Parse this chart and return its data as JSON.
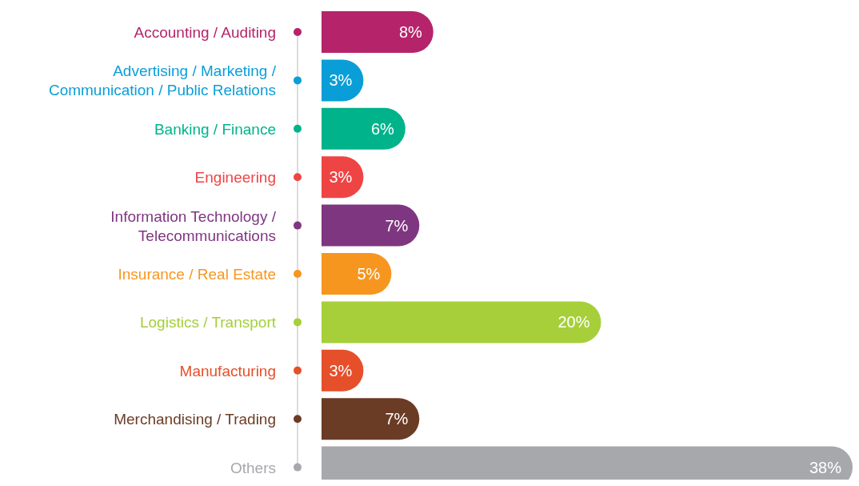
{
  "chart_data": {
    "type": "bar",
    "orientation": "horizontal",
    "categories": [
      "Accounting / Auditing",
      "Advertising / Marketing / Communication / Public Relations",
      "Banking / Finance",
      "Engineering",
      "Information Technology / Telecommunications",
      "Insurance / Real Estate",
      "Logistics / Transport",
      "Manufacturing",
      "Merchandising / Trading",
      "Others"
    ],
    "values": [
      8,
      3,
      6,
      3,
      7,
      5,
      20,
      3,
      7,
      38
    ],
    "value_labels": [
      "8%",
      "3%",
      "6%",
      "3%",
      "7%",
      "5%",
      "20%",
      "3%",
      "7%",
      "38%"
    ],
    "colors": [
      "#b5246a",
      "#0a9ed8",
      "#00b38b",
      "#ef4444",
      "#7f3680",
      "#f7961f",
      "#a6cf3a",
      "#e5502a",
      "#6b3c25",
      "#a7a8ac"
    ]
  }
}
